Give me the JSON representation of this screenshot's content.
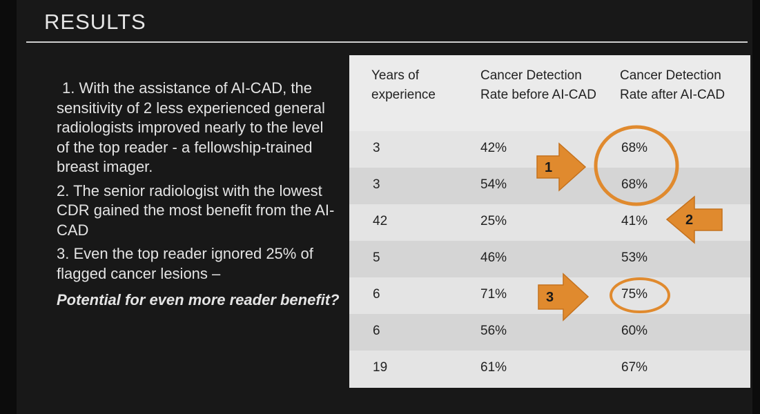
{
  "slide": {
    "title": "RESULTS",
    "points": [
      "1. With the assistance of AI-CAD, the sensitivity of 2 less experienced general radiologists improved nearly to the level of the top reader - a fellowship-trained breast imager.",
      "2. The senior radiologist with the lowest CDR gained the most benefit from the AI-CAD",
      "3. Even the top  reader ignored 25%  of flagged cancer lesions –",
      "Potential for even more reader benefit?"
    ]
  },
  "table": {
    "headers": [
      "Years of experience",
      "Cancer Detection Rate before AI-CAD",
      "Cancer Detection Rate after AI-CAD"
    ],
    "rows": [
      [
        "3",
        "42%",
        "68%"
      ],
      [
        "3",
        "54%",
        "68%"
      ],
      [
        "42",
        "25%",
        "41%"
      ],
      [
        "5",
        "46%",
        "53%"
      ],
      [
        "6",
        "71%",
        "75%"
      ],
      [
        "6",
        "56%",
        "60%"
      ],
      [
        "19",
        "61%",
        "67%"
      ]
    ]
  },
  "annotations": {
    "arrow_labels": [
      "1",
      "2",
      "3"
    ],
    "color": "#e08a2e"
  }
}
